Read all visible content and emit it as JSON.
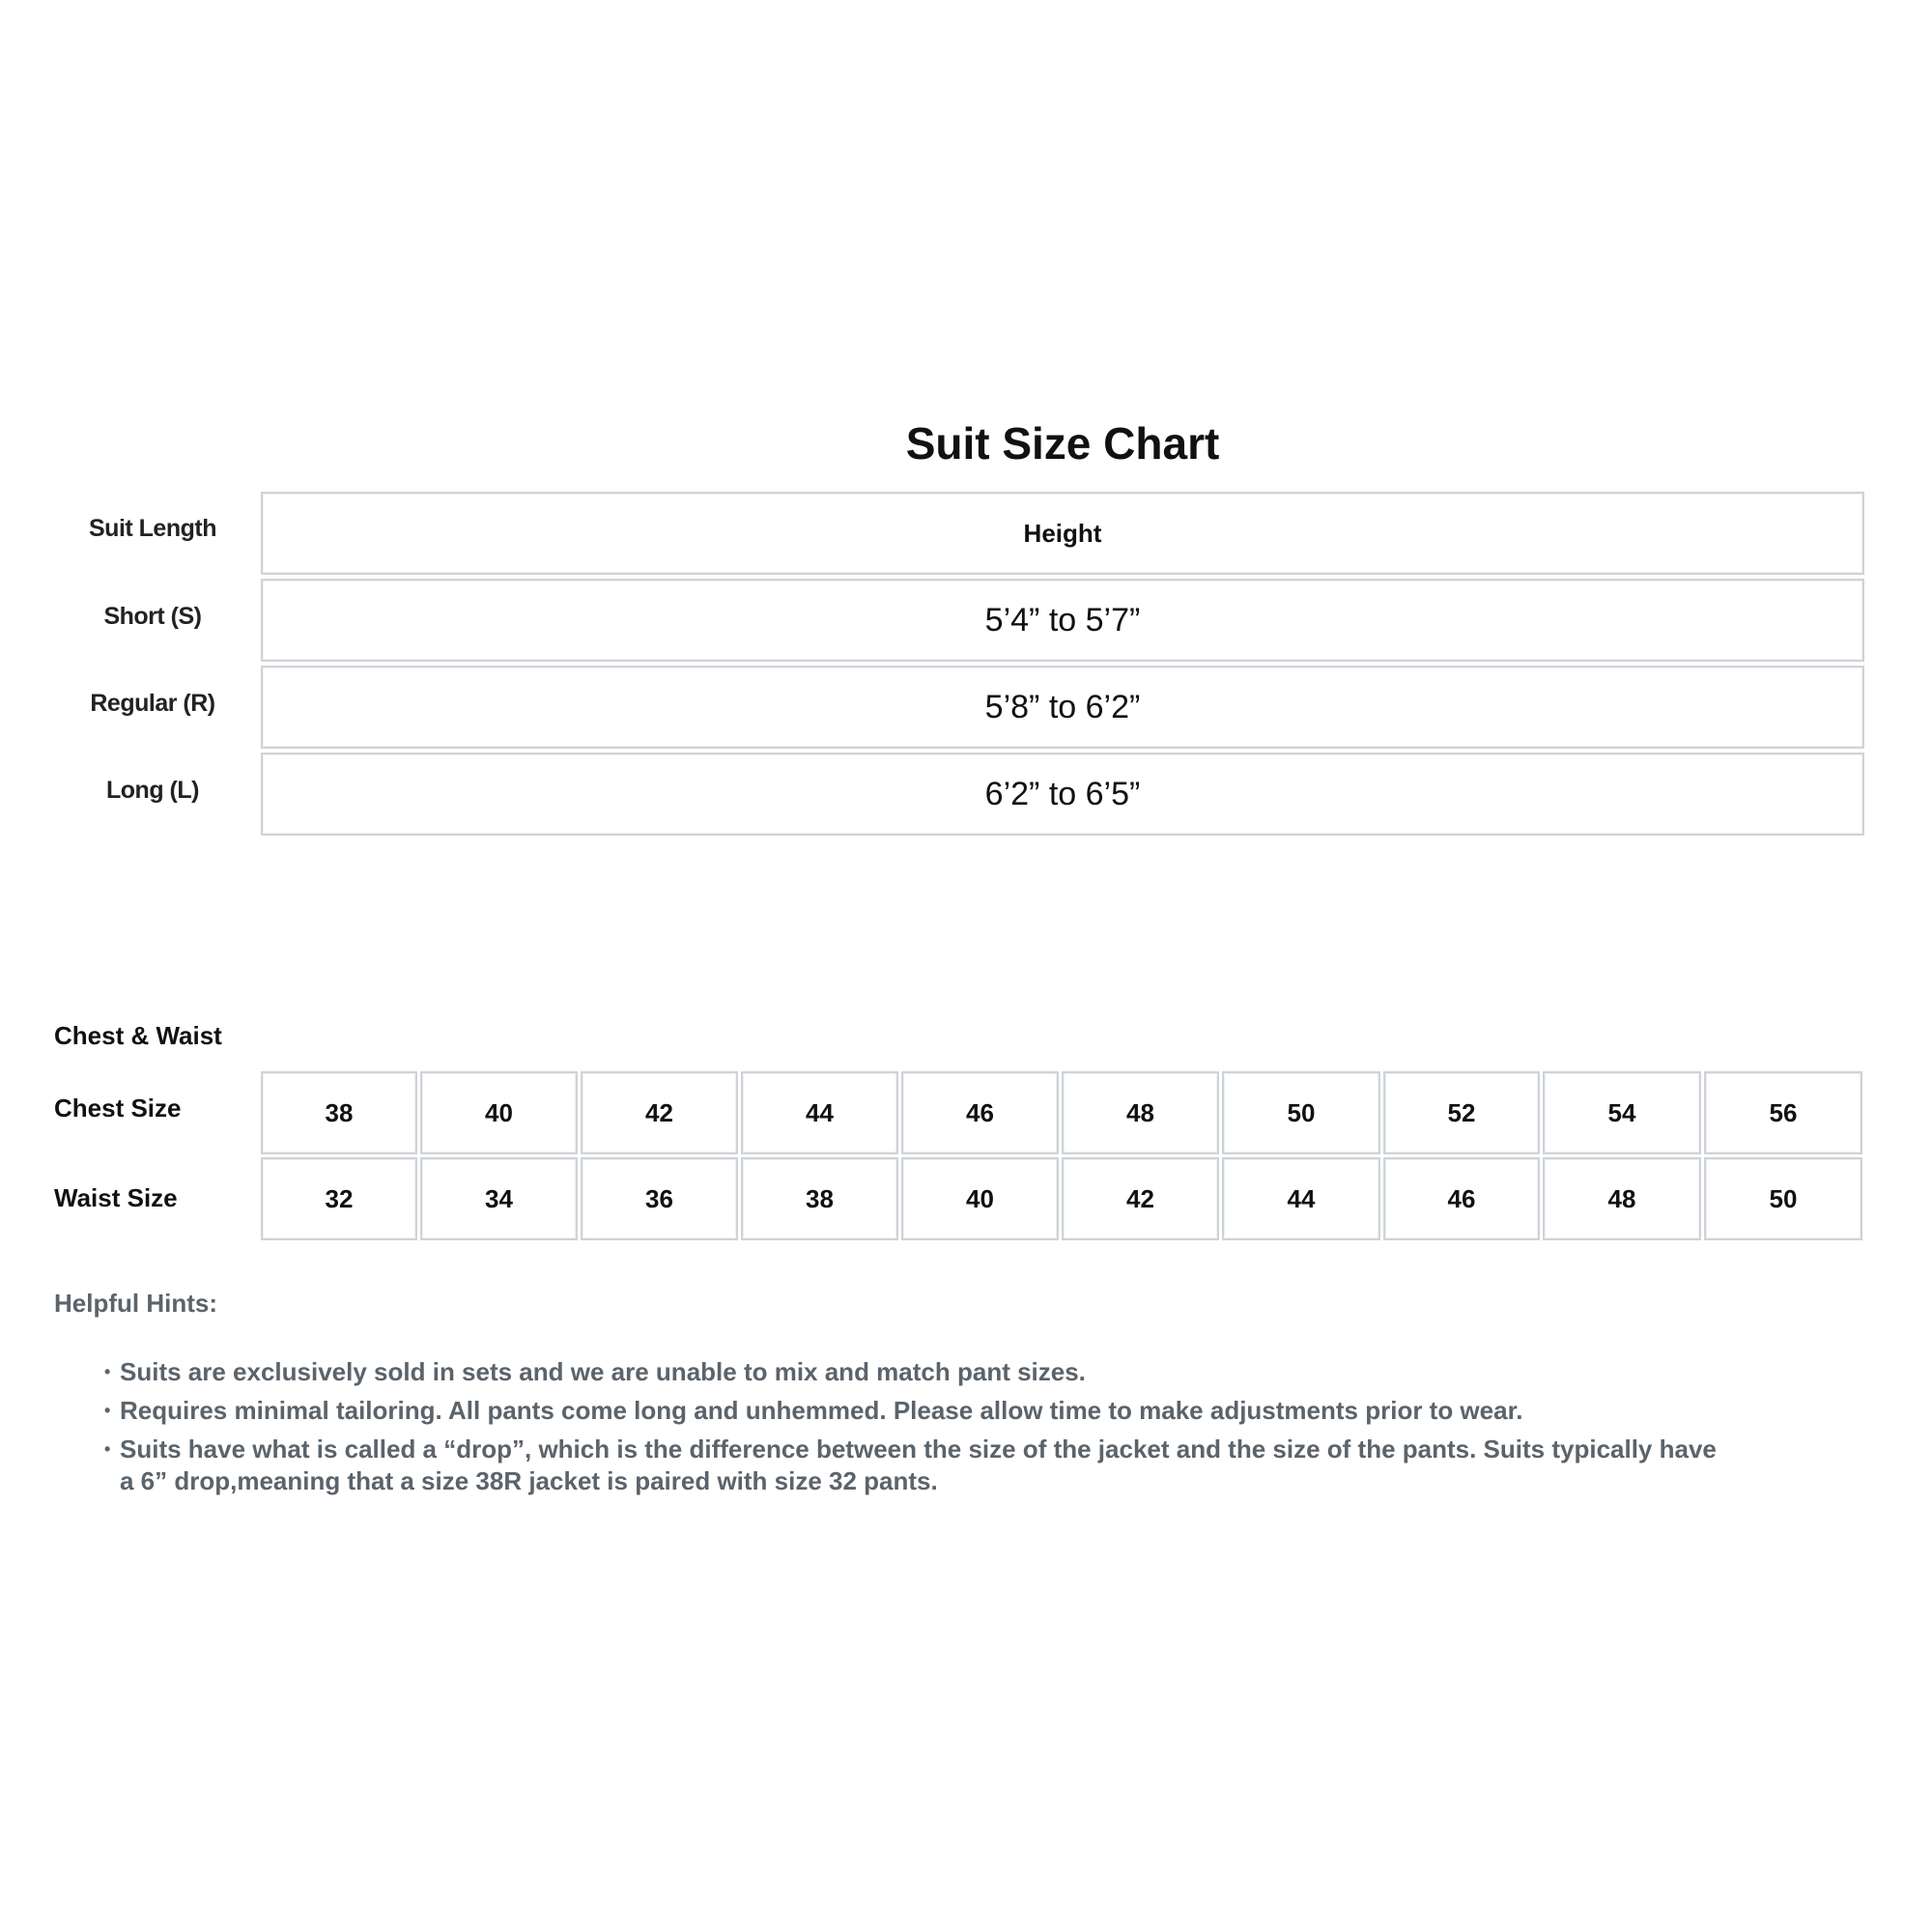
{
  "title": "Suit Size Chart",
  "length_table": {
    "header": {
      "label": "Suit Length",
      "value": "Height"
    },
    "rows": [
      {
        "label": "Short (S)",
        "value": "5’4” to 5’7”"
      },
      {
        "label": "Regular (R)",
        "value": "5’8” to 6’2”"
      },
      {
        "label": "Long (L)",
        "value": "6’2” to 6’5”"
      }
    ]
  },
  "chest_waist": {
    "section_label": "Chest & Waist",
    "rows": [
      {
        "label": "Chest Size",
        "values": [
          "38",
          "40",
          "42",
          "44",
          "46",
          "48",
          "50",
          "52",
          "54",
          "56"
        ]
      },
      {
        "label": "Waist Size",
        "values": [
          "32",
          "34",
          "36",
          "38",
          "40",
          "42",
          "44",
          "46",
          "48",
          "50"
        ]
      }
    ]
  },
  "hints": {
    "title": "Helpful Hints:",
    "items": [
      "Suits are exclusively sold in sets and we are unable to mix and match pant sizes.",
      "Requires minimal tailoring. All pants come long and unhemmed. Please allow time to make adjustments prior to wear.",
      "Suits have what is called a “drop”, which is the difference between the size of the jacket and the size of the pants. Suits typically have a 6” drop,meaning that a size 38R jacket is paired with size 32 pants."
    ]
  },
  "colors": {
    "text": "#111111",
    "hint_text": "#5b636b",
    "border": "#cfd3d7"
  }
}
